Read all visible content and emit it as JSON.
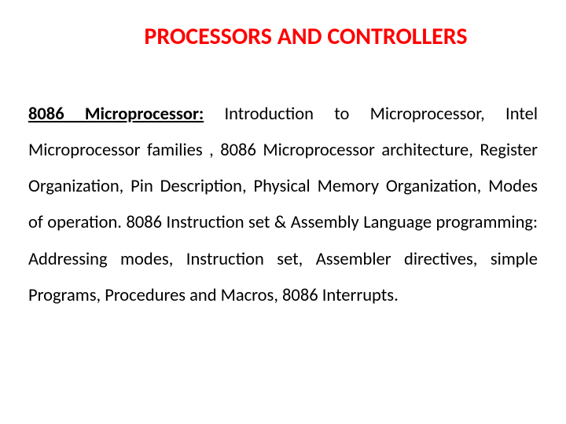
{
  "title": {
    "text": "PROCESSORS AND CONTROLLERS",
    "color": "#ff0000",
    "fontsize": 30
  },
  "body": {
    "heading": "8086 Microprocessor:",
    "content": " Introduction to Microprocessor, Intel Microprocessor families , 8086 Microprocessor architecture, Register Organization, Pin Description, Physical Memory Organization, Modes of operation. 8086 Instruction set & Assembly Language programming: Addressing modes, Instruction set, Assembler directives, simple Programs, Procedures and Macros, 8086 Interrupts.",
    "color": "#000000",
    "fontsize": 22.5
  }
}
